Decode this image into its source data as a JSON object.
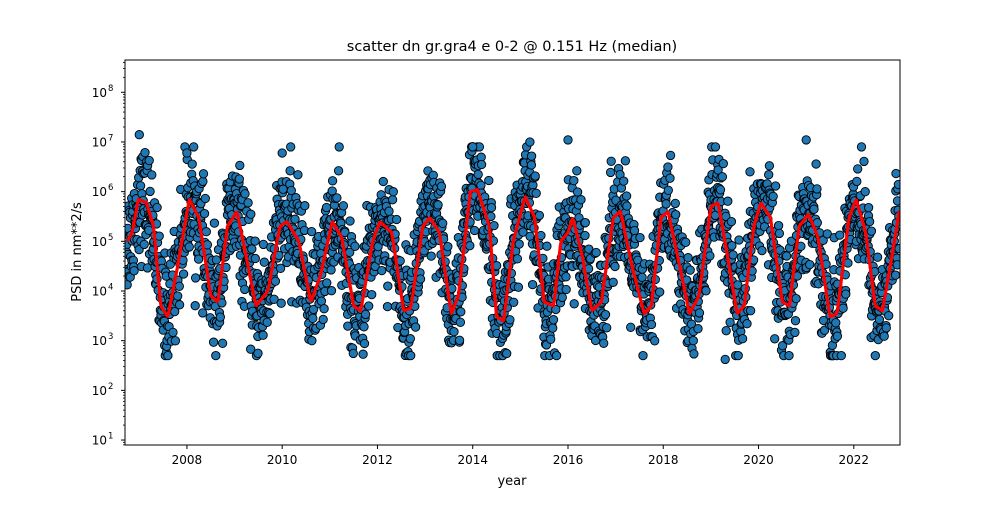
{
  "chart_data": {
    "type": "scatter",
    "title": "scatter dn gr.gra4 e 0-2 @ 0.151 Hz (median)",
    "xlabel": "year",
    "ylabel": "PSD in nm**2/s",
    "yscale": "log",
    "xlim": [
      2006.7,
      2022.97
    ],
    "ylim_log10": [
      0.9,
      8.65
    ],
    "x_ticks": [
      2008,
      2010,
      2012,
      2014,
      2016,
      2018,
      2020,
      2022
    ],
    "x_tick_labels": [
      "2008",
      "2010",
      "2012",
      "2014",
      "2016",
      "2018",
      "2020",
      "2022"
    ],
    "y_ticks_log10": [
      1,
      2,
      3,
      4,
      5,
      6,
      7,
      8
    ],
    "y_tick_base": "10",
    "y_tick_exponents": [
      "1",
      "2",
      "3",
      "4",
      "5",
      "6",
      "7",
      "8"
    ],
    "grid": false,
    "colors": {
      "scatter_fill": "#1f77b4",
      "scatter_edge": "#000000",
      "median_line": "#ff0000"
    },
    "series": [
      {
        "kind": "scatter",
        "description_rule": "daily samples; spread of about one decade around the running median, with isolated peaks up to ~1e7",
        "peaks": [
          {
            "x": 2007.0,
            "y": 14000000
          },
          {
            "x": 2008.0,
            "y": 6000000
          },
          {
            "x": 2010.0,
            "y": 6000000
          },
          {
            "x": 2014.0,
            "y": 8000000
          },
          {
            "x": 2015.2,
            "y": 10000000
          },
          {
            "x": 2016.0,
            "y": 11000000
          },
          {
            "x": 2021.0,
            "y": 11000000
          },
          {
            "x": 2019.3,
            "y": 420
          }
        ]
      },
      {
        "kind": "line",
        "statistic": "running median",
        "points": [
          {
            "x": 2006.75,
            "y": 100000
          },
          {
            "x": 2006.85,
            "y": 150000
          },
          {
            "x": 2006.98,
            "y": 700000
          },
          {
            "x": 2007.15,
            "y": 600000
          },
          {
            "x": 2007.3,
            "y": 200000
          },
          {
            "x": 2007.45,
            "y": 5000
          },
          {
            "x": 2007.6,
            "y": 3000
          },
          {
            "x": 2007.8,
            "y": 30000
          },
          {
            "x": 2008.05,
            "y": 700000
          },
          {
            "x": 2008.25,
            "y": 300000
          },
          {
            "x": 2008.5,
            "y": 8000
          },
          {
            "x": 2008.65,
            "y": 6000
          },
          {
            "x": 2008.85,
            "y": 200000
          },
          {
            "x": 2009.05,
            "y": 400000
          },
          {
            "x": 2009.2,
            "y": 80000
          },
          {
            "x": 2009.45,
            "y": 5000
          },
          {
            "x": 2009.7,
            "y": 10000
          },
          {
            "x": 2009.95,
            "y": 200000
          },
          {
            "x": 2010.1,
            "y": 250000
          },
          {
            "x": 2010.35,
            "y": 100000
          },
          {
            "x": 2010.6,
            "y": 6000
          },
          {
            "x": 2010.8,
            "y": 20000
          },
          {
            "x": 2011.05,
            "y": 250000
          },
          {
            "x": 2011.25,
            "y": 120000
          },
          {
            "x": 2011.5,
            "y": 5000
          },
          {
            "x": 2011.65,
            "y": 4000
          },
          {
            "x": 2011.9,
            "y": 100000
          },
          {
            "x": 2012.05,
            "y": 250000
          },
          {
            "x": 2012.3,
            "y": 150000
          },
          {
            "x": 2012.55,
            "y": 4000
          },
          {
            "x": 2012.7,
            "y": 4500
          },
          {
            "x": 2012.95,
            "y": 200000
          },
          {
            "x": 2013.1,
            "y": 300000
          },
          {
            "x": 2013.3,
            "y": 150000
          },
          {
            "x": 2013.55,
            "y": 3500
          },
          {
            "x": 2013.7,
            "y": 8000
          },
          {
            "x": 2013.95,
            "y": 1000000
          },
          {
            "x": 2014.1,
            "y": 1100000
          },
          {
            "x": 2014.35,
            "y": 200000
          },
          {
            "x": 2014.5,
            "y": 3000
          },
          {
            "x": 2014.65,
            "y": 2500
          },
          {
            "x": 2014.85,
            "y": 100000
          },
          {
            "x": 2015.1,
            "y": 800000
          },
          {
            "x": 2015.3,
            "y": 300000
          },
          {
            "x": 2015.5,
            "y": 6000
          },
          {
            "x": 2015.7,
            "y": 5000
          },
          {
            "x": 2015.85,
            "y": 100000
          },
          {
            "x": 2016.0,
            "y": 150000
          },
          {
            "x": 2016.1,
            "y": 300000
          },
          {
            "x": 2016.3,
            "y": 50000
          },
          {
            "x": 2016.5,
            "y": 4000
          },
          {
            "x": 2016.7,
            "y": 6000
          },
          {
            "x": 2016.95,
            "y": 300000
          },
          {
            "x": 2017.1,
            "y": 400000
          },
          {
            "x": 2017.35,
            "y": 30000
          },
          {
            "x": 2017.6,
            "y": 3500
          },
          {
            "x": 2017.75,
            "y": 5000
          },
          {
            "x": 2017.95,
            "y": 300000
          },
          {
            "x": 2018.1,
            "y": 400000
          },
          {
            "x": 2018.35,
            "y": 30000
          },
          {
            "x": 2018.55,
            "y": 3500
          },
          {
            "x": 2018.75,
            "y": 8000
          },
          {
            "x": 2019.0,
            "y": 500000
          },
          {
            "x": 2019.15,
            "y": 600000
          },
          {
            "x": 2019.35,
            "y": 50000
          },
          {
            "x": 2019.55,
            "y": 3500
          },
          {
            "x": 2019.7,
            "y": 5000
          },
          {
            "x": 2019.9,
            "y": 200000
          },
          {
            "x": 2020.05,
            "y": 600000
          },
          {
            "x": 2020.25,
            "y": 300000
          },
          {
            "x": 2020.5,
            "y": 6000
          },
          {
            "x": 2020.65,
            "y": 5000
          },
          {
            "x": 2020.85,
            "y": 200000
          },
          {
            "x": 2021.05,
            "y": 350000
          },
          {
            "x": 2021.25,
            "y": 120000
          },
          {
            "x": 2021.5,
            "y": 3000
          },
          {
            "x": 2021.65,
            "y": 3500
          },
          {
            "x": 2021.9,
            "y": 300000
          },
          {
            "x": 2022.05,
            "y": 700000
          },
          {
            "x": 2022.25,
            "y": 150000
          },
          {
            "x": 2022.45,
            "y": 5000
          },
          {
            "x": 2022.6,
            "y": 4000
          },
          {
            "x": 2022.8,
            "y": 50000
          },
          {
            "x": 2022.97,
            "y": 500000
          }
        ]
      }
    ]
  }
}
